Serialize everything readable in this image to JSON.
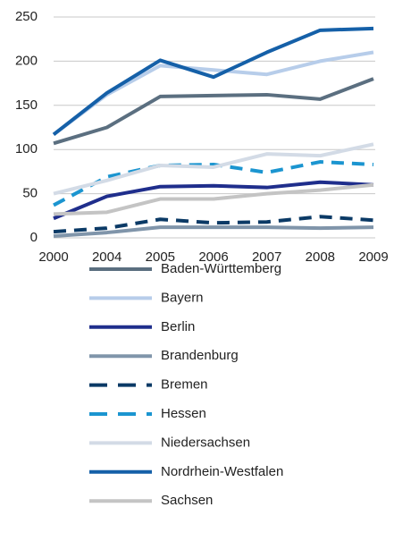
{
  "chart_data": {
    "type": "line",
    "categories": [
      "2000",
      "2004",
      "2005",
      "2006",
      "2007",
      "2008",
      "2009"
    ],
    "ylim": [
      0,
      250
    ],
    "yticks": [
      0,
      50,
      100,
      150,
      200,
      250
    ],
    "grid": true,
    "series": [
      {
        "name": "Baden-Württemberg",
        "color": "#5b6f80",
        "dashed": false,
        "values": [
          107,
          125,
          160,
          161,
          162,
          157,
          180
        ]
      },
      {
        "name": "Bayern",
        "color": "#b7cdea",
        "dashed": false,
        "values": [
          117,
          162,
          195,
          190,
          185,
          200,
          210
        ]
      },
      {
        "name": "Berlin",
        "color": "#1f2e8c",
        "dashed": false,
        "values": [
          22,
          47,
          58,
          59,
          57,
          63,
          60
        ]
      },
      {
        "name": "Brandenburg",
        "color": "#8095aa",
        "dashed": false,
        "values": [
          2,
          6,
          12,
          12,
          12,
          11,
          12
        ]
      },
      {
        "name": "Bremen",
        "color": "#0b3a66",
        "dashed": true,
        "values": [
          7,
          11,
          21,
          17,
          18,
          24,
          20
        ]
      },
      {
        "name": "Hessen",
        "color": "#1b95d0",
        "dashed": true,
        "values": [
          37,
          69,
          82,
          83,
          74,
          86,
          83
        ]
      },
      {
        "name": "Niedersachsen",
        "color": "#d3dbe6",
        "dashed": false,
        "values": [
          50,
          65,
          82,
          80,
          95,
          93,
          106
        ]
      },
      {
        "name": "Nordrhein-Westfalen",
        "color": "#1560a8",
        "dashed": false,
        "values": [
          117,
          164,
          201,
          182,
          210,
          235,
          237
        ]
      },
      {
        "name": "Sachsen",
        "color": "#c4c4c4",
        "dashed": false,
        "values": [
          27,
          29,
          44,
          44,
          50,
          54,
          60
        ]
      }
    ]
  }
}
